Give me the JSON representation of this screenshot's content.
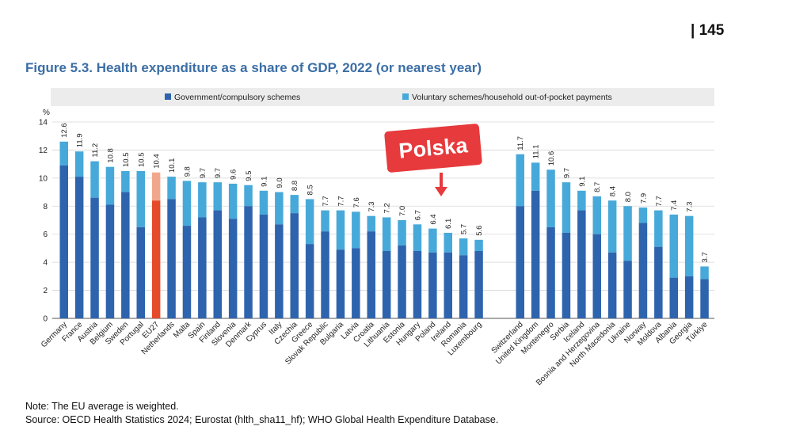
{
  "header": {
    "page_number": "| 145"
  },
  "figure": {
    "title": "Figure 5.3. Health expenditure as a share of GDP, 2022 (or nearest year)"
  },
  "annotation": {
    "label": "Polska"
  },
  "notes": {
    "note": "Note: The EU average is weighted.",
    "source": "Source: OECD Health Statistics 2024; Eurostat (hlth_sha11_hf); WHO Global Health Expenditure Database."
  },
  "colors": {
    "gov": "#2e64ad",
    "vol": "#47a9d9",
    "eu_gov": "#e54b2a",
    "eu_vol": "#f1a78d",
    "title": "#3b6ea5",
    "legend_bg": "#ececec",
    "callout": "#e63a3c"
  },
  "chart_data": {
    "type": "bar",
    "stacked": true,
    "ylabel": "%",
    "ylim": [
      0,
      14
    ],
    "yticks": [
      0,
      2,
      4,
      6,
      8,
      10,
      12,
      14
    ],
    "grid": true,
    "legend": [
      "Government/compulsory schemes",
      "Voluntary schemes/household out-of-pocket payments"
    ],
    "series_names": {
      "gov": "Government/compulsory schemes",
      "vol": "Voluntary schemes/household out-of-pocket payments"
    },
    "groups": [
      [
        {
          "country": "Germany",
          "total": 12.6,
          "gov": 10.9,
          "total_label": "12.6"
        },
        {
          "country": "France",
          "total": 11.9,
          "gov": 10.1,
          "total_label": "11.9"
        },
        {
          "country": "Austria",
          "total": 11.2,
          "gov": 8.6,
          "total_label": "11.2"
        },
        {
          "country": "Belgium",
          "total": 10.8,
          "gov": 8.1,
          "total_label": "10.8"
        },
        {
          "country": "Sweden",
          "total": 10.5,
          "gov": 9.0,
          "total_label": "10.5"
        },
        {
          "country": "Portugal",
          "total": 10.5,
          "gov": 6.5,
          "total_label": "10.5"
        },
        {
          "country": "EU27",
          "total": 10.4,
          "gov": 8.4,
          "total_label": "10.4",
          "highlight": true
        },
        {
          "country": "Netherlands",
          "total": 10.1,
          "gov": 8.5,
          "total_label": "10.1"
        },
        {
          "country": "Malta",
          "total": 9.8,
          "gov": 6.6,
          "total_label": "9.8"
        },
        {
          "country": "Spain",
          "total": 9.7,
          "gov": 7.2,
          "total_label": "9.7"
        },
        {
          "country": "Finland",
          "total": 9.7,
          "gov": 7.7,
          "total_label": "9.7"
        },
        {
          "country": "Slovenia",
          "total": 9.6,
          "gov": 7.1,
          "total_label": "9.6"
        },
        {
          "country": "Denmark",
          "total": 9.5,
          "gov": 8.0,
          "total_label": "9.5"
        },
        {
          "country": "Cyprus",
          "total": 9.1,
          "gov": 7.4,
          "total_label": "9.1"
        },
        {
          "country": "Italy",
          "total": 9.0,
          "gov": 6.7,
          "total_label": "9.0"
        },
        {
          "country": "Czechia",
          "total": 8.8,
          "gov": 7.5,
          "total_label": "8.8"
        },
        {
          "country": "Greece",
          "total": 8.5,
          "gov": 5.3,
          "total_label": "8.5"
        },
        {
          "country": "Slovak Republic",
          "total": 7.7,
          "gov": 6.2,
          "total_label": "7.7"
        },
        {
          "country": "Bulgaria",
          "total": 7.7,
          "gov": 4.9,
          "total_label": "7.7"
        },
        {
          "country": "Latvia",
          "total": 7.6,
          "gov": 5.0,
          "total_label": "7.6"
        },
        {
          "country": "Croatia",
          "total": 7.3,
          "gov": 6.2,
          "total_label": "7.3"
        },
        {
          "country": "Lithuania",
          "total": 7.2,
          "gov": 4.8,
          "total_label": "7.2"
        },
        {
          "country": "Estonia",
          "total": 7.0,
          "gov": 5.2,
          "total_label": "7.0"
        },
        {
          "country": "Hungary",
          "total": 6.7,
          "gov": 4.8,
          "total_label": "6.7"
        },
        {
          "country": "Poland",
          "total": 6.4,
          "gov": 4.7,
          "total_label": "6.4"
        },
        {
          "country": "Ireland",
          "total": 6.1,
          "gov": 4.7,
          "total_label": "6.1"
        },
        {
          "country": "Romania",
          "total": 5.7,
          "gov": 4.5,
          "total_label": "5.7"
        },
        {
          "country": "Luxembourg",
          "total": 5.6,
          "gov": 4.8,
          "total_label": "5.6"
        }
      ],
      [
        {
          "country": "Switzerland",
          "total": 11.7,
          "gov": 8.0,
          "total_label": "11.7"
        },
        {
          "country": "United Kingdom",
          "total": 11.1,
          "gov": 9.1,
          "total_label": "11.1"
        },
        {
          "country": "Montenegro",
          "total": 10.6,
          "gov": 6.5,
          "total_label": "10.6"
        },
        {
          "country": "Serbia",
          "total": 9.7,
          "gov": 6.1,
          "total_label": "9.7"
        },
        {
          "country": "Iceland",
          "total": 9.1,
          "gov": 7.7,
          "total_label": "9.1"
        },
        {
          "country": "Bosnia and Herzegovina",
          "total": 8.7,
          "gov": 6.0,
          "total_label": "8.7"
        },
        {
          "country": "North Macedonia",
          "total": 8.4,
          "gov": 4.7,
          "total_label": "8.4"
        },
        {
          "country": "Ukraine",
          "total": 8.0,
          "gov": 4.1,
          "total_label": "8.0"
        },
        {
          "country": "Norway",
          "total": 7.9,
          "gov": 6.8,
          "total_label": "7.9"
        },
        {
          "country": "Moldova",
          "total": 7.7,
          "gov": 5.1,
          "total_label": "7.7"
        },
        {
          "country": "Albania",
          "total": 7.4,
          "gov": 2.9,
          "total_label": "7.4"
        },
        {
          "country": "Georgia",
          "total": 7.3,
          "gov": 3.0,
          "total_label": "7.3"
        },
        {
          "country": "Türkiye",
          "total": 3.7,
          "gov": 2.8,
          "total_label": "3.7"
        }
      ]
    ]
  }
}
